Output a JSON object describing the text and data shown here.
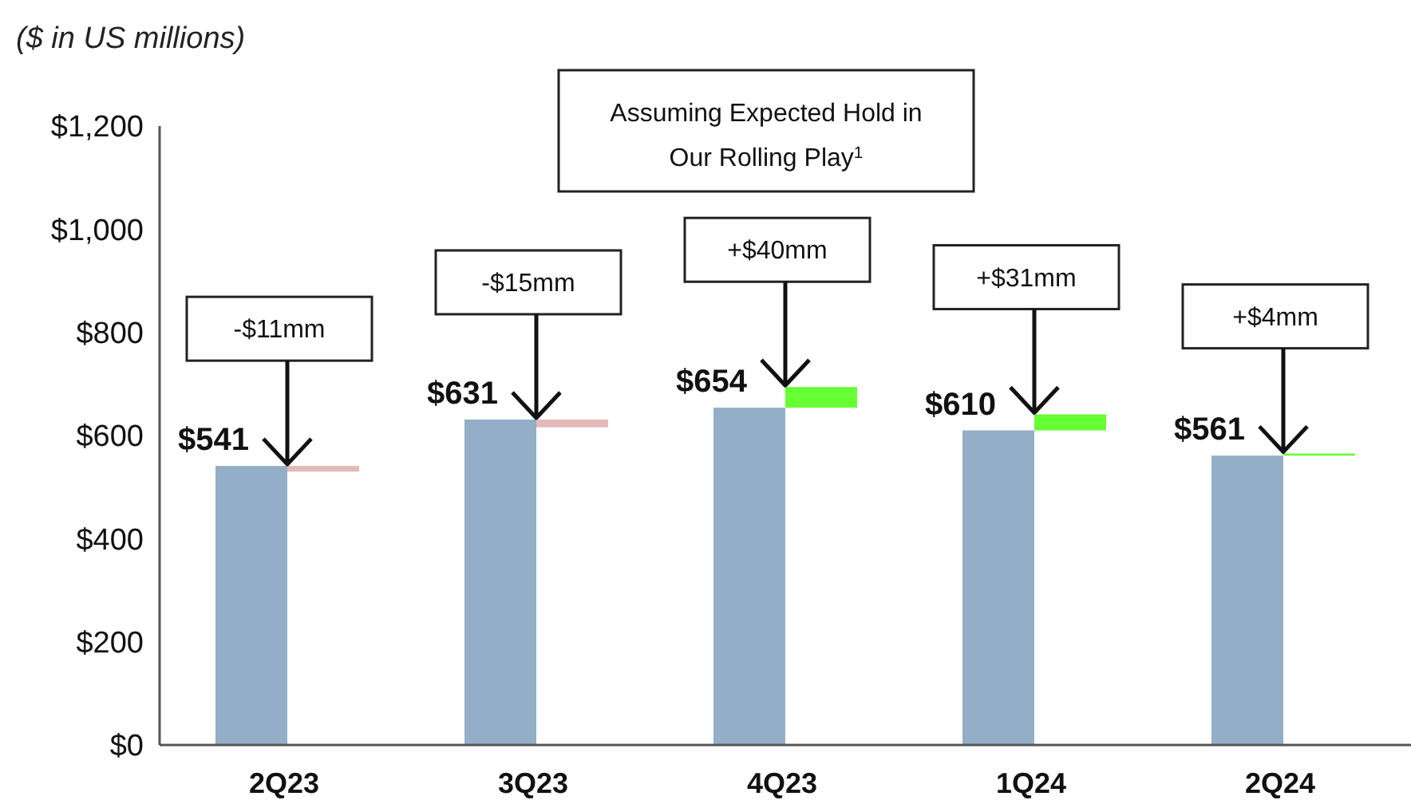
{
  "chart_data": {
    "type": "bar",
    "ylabel": "($ in US millions)",
    "categories": [
      "2Q23",
      "3Q23",
      "4Q23",
      "1Q24",
      "2Q24"
    ],
    "series": [
      {
        "color": "#94aec7",
        "values": [
          541,
          631,
          654,
          610,
          561
        ],
        "value_labels": [
          "$541",
          "$631",
          "$654",
          "$610",
          "$561"
        ]
      },
      {
        "colors": [
          "#e6b8b8",
          "#e6b8b8",
          "#66ff33",
          "#66ff33",
          "#66ff33"
        ],
        "base": [
          541,
          631,
          654,
          610,
          561
        ],
        "values": [
          -11,
          -15,
          40,
          31,
          4
        ]
      }
    ],
    "ylim": [
      0,
      1200
    ],
    "yticks": [
      {
        "value": 0,
        "label": "$0"
      },
      {
        "value": 200,
        "label": "$200"
      },
      {
        "value": 400,
        "label": "$400"
      },
      {
        "value": 600,
        "label": "$600"
      },
      {
        "value": 800,
        "label": "$800"
      },
      {
        "value": 1000,
        "label": "$1,000"
      },
      {
        "value": 1200,
        "label": "$1,200"
      }
    ],
    "grid": false,
    "annotations": [
      "Assuming Expected Hold in Our Rolling Play$^{1}$",
      {
        "text": "-$11mm",
        "x": "2Q23",
        "y": 541
      },
      {
        "text": "-$15mm",
        "x": "3Q23",
        "y": 631
      },
      {
        "text": "+$40mm",
        "x": "4Q23",
        "y": 694
      },
      {
        "text": "+$31mm",
        "x": "1Q24",
        "y": 641
      },
      {
        "text": "+$4mm",
        "x": "2Q24",
        "y": 565
      }
    ]
  }
}
